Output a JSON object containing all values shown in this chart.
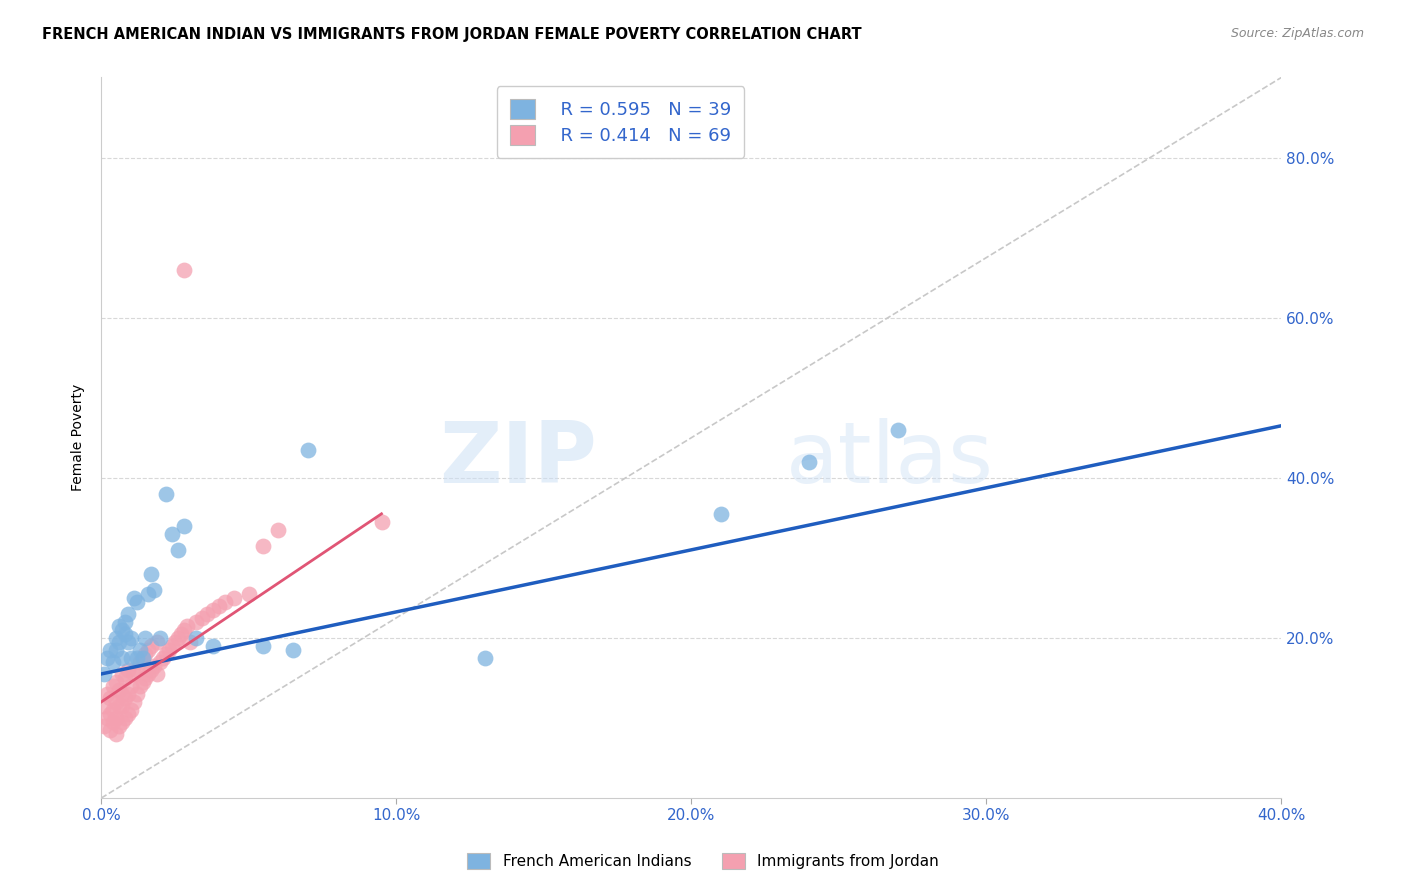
{
  "title": "FRENCH AMERICAN INDIAN VS IMMIGRANTS FROM JORDAN FEMALE POVERTY CORRELATION CHART",
  "source": "Source: ZipAtlas.com",
  "ylabel": "Female Poverty",
  "xlim": [
    0.0,
    0.4
  ],
  "ylim": [
    0.0,
    0.9
  ],
  "xticks": [
    0.0,
    0.1,
    0.2,
    0.3,
    0.4
  ],
  "yticks": [
    0.0,
    0.2,
    0.4,
    0.6,
    0.8
  ],
  "xtick_labels": [
    "0.0%",
    "10.0%",
    "20.0%",
    "30.0%",
    "40.0%"
  ],
  "ytick_labels_right": [
    "",
    "20.0%",
    "40.0%",
    "60.0%",
    "80.0%"
  ],
  "blue_color": "#7eb3e0",
  "pink_color": "#f4a0b0",
  "blue_line_color": "#1f5dbf",
  "pink_line_color": "#e05575",
  "diagonal_color": "#c8c8c8",
  "grid_color": "#d8d8d8",
  "R_blue": 0.595,
  "N_blue": 39,
  "R_pink": 0.414,
  "N_pink": 69,
  "legend_label_blue": "French American Indians",
  "legend_label_pink": "Immigrants from Jordan",
  "watermark_zip": "ZIP",
  "watermark_atlas": "atlas",
  "blue_scatter_x": [
    0.001,
    0.002,
    0.003,
    0.004,
    0.005,
    0.005,
    0.006,
    0.006,
    0.007,
    0.007,
    0.008,
    0.008,
    0.009,
    0.009,
    0.01,
    0.01,
    0.011,
    0.012,
    0.012,
    0.013,
    0.014,
    0.015,
    0.016,
    0.017,
    0.018,
    0.02,
    0.022,
    0.024,
    0.026,
    0.028,
    0.032,
    0.038,
    0.055,
    0.065,
    0.07,
    0.13,
    0.21,
    0.24,
    0.27
  ],
  "blue_scatter_y": [
    0.155,
    0.175,
    0.185,
    0.17,
    0.2,
    0.185,
    0.195,
    0.215,
    0.21,
    0.175,
    0.22,
    0.205,
    0.195,
    0.23,
    0.175,
    0.2,
    0.25,
    0.245,
    0.175,
    0.185,
    0.175,
    0.2,
    0.255,
    0.28,
    0.26,
    0.2,
    0.38,
    0.33,
    0.31,
    0.34,
    0.2,
    0.19,
    0.19,
    0.185,
    0.435,
    0.175,
    0.355,
    0.42,
    0.46
  ],
  "pink_scatter_x": [
    0.001,
    0.001,
    0.002,
    0.002,
    0.003,
    0.003,
    0.003,
    0.004,
    0.004,
    0.004,
    0.005,
    0.005,
    0.005,
    0.005,
    0.006,
    0.006,
    0.006,
    0.007,
    0.007,
    0.007,
    0.007,
    0.008,
    0.008,
    0.008,
    0.009,
    0.009,
    0.009,
    0.01,
    0.01,
    0.011,
    0.011,
    0.012,
    0.012,
    0.013,
    0.013,
    0.014,
    0.014,
    0.015,
    0.015,
    0.016,
    0.016,
    0.017,
    0.017,
    0.018,
    0.019,
    0.019,
    0.02,
    0.021,
    0.022,
    0.023,
    0.024,
    0.025,
    0.026,
    0.027,
    0.028,
    0.029,
    0.03,
    0.032,
    0.034,
    0.036,
    0.038,
    0.04,
    0.042,
    0.045,
    0.05,
    0.055,
    0.06,
    0.028,
    0.095
  ],
  "pink_scatter_y": [
    0.09,
    0.115,
    0.1,
    0.13,
    0.085,
    0.105,
    0.125,
    0.095,
    0.11,
    0.14,
    0.08,
    0.1,
    0.12,
    0.145,
    0.09,
    0.115,
    0.135,
    0.095,
    0.115,
    0.13,
    0.155,
    0.1,
    0.125,
    0.15,
    0.105,
    0.13,
    0.16,
    0.11,
    0.14,
    0.12,
    0.155,
    0.13,
    0.16,
    0.14,
    0.17,
    0.145,
    0.175,
    0.15,
    0.18,
    0.155,
    0.185,
    0.16,
    0.19,
    0.165,
    0.155,
    0.195,
    0.17,
    0.175,
    0.18,
    0.185,
    0.19,
    0.195,
    0.2,
    0.205,
    0.21,
    0.215,
    0.195,
    0.22,
    0.225,
    0.23,
    0.235,
    0.24,
    0.245,
    0.25,
    0.255,
    0.315,
    0.335,
    0.66,
    0.345
  ],
  "blue_line_x": [
    0.0,
    0.4
  ],
  "blue_line_y": [
    0.155,
    0.465
  ],
  "pink_line_x": [
    0.0,
    0.095
  ],
  "pink_line_y": [
    0.12,
    0.355
  ]
}
